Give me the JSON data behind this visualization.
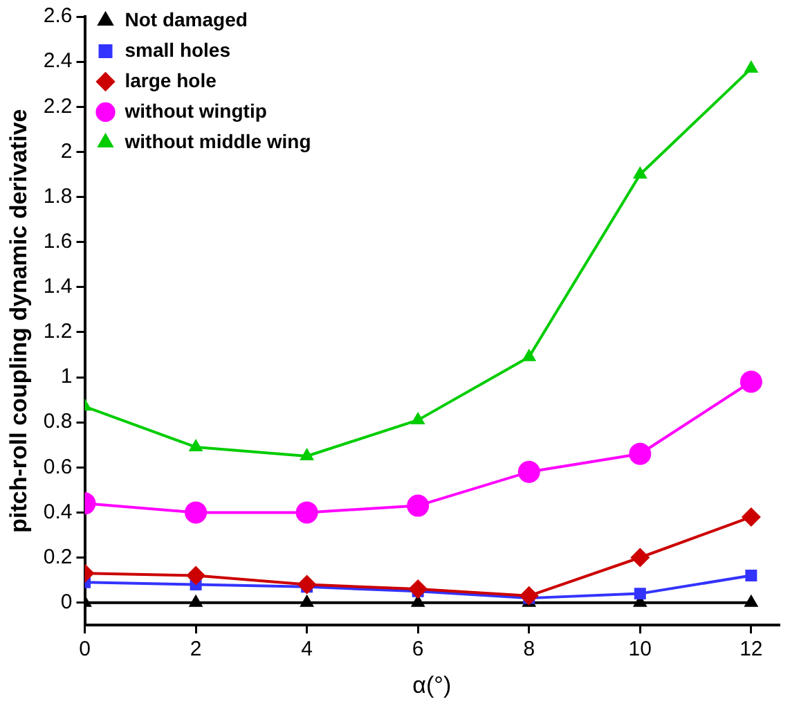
{
  "chart_data": {
    "type": "line",
    "xlabel": "α(°)",
    "ylabel": "pitch-roll coupling dynamic derivative",
    "x": [
      0,
      2,
      4,
      6,
      8,
      10,
      12
    ],
    "xlim": [
      0,
      12.5
    ],
    "xticks": [
      0,
      2,
      4,
      6,
      8,
      10,
      12
    ],
    "ylim": [
      -0.1,
      2.6
    ],
    "yticks": [
      0,
      0.2,
      0.4,
      0.6,
      0.8,
      1,
      1.2,
      1.4,
      1.6,
      1.8,
      2,
      2.2,
      2.4,
      2.6
    ],
    "grid": false,
    "legend": "top left",
    "line_style": "solid",
    "series": [
      {
        "name": "Not damaged",
        "color": "#000000",
        "marker": "triangle",
        "values": [
          0,
          0,
          0,
          0,
          0,
          0,
          0
        ]
      },
      {
        "name": "small holes",
        "color": "#3333ff",
        "marker": "square",
        "values": [
          0.09,
          0.08,
          0.07,
          0.05,
          0.02,
          0.04,
          0.12
        ]
      },
      {
        "name": "large hole",
        "color": "#cc0000",
        "marker": "diamond",
        "values": [
          0.13,
          0.12,
          0.08,
          0.06,
          0.03,
          0.2,
          0.38
        ]
      },
      {
        "name": "without wingtip",
        "color": "#ff00ff",
        "marker": "circle",
        "values": [
          0.44,
          0.4,
          0.4,
          0.43,
          0.58,
          0.66,
          0.98
        ]
      },
      {
        "name": "without middle wing",
        "color": "#00cc00",
        "marker": "triangle",
        "values": [
          0.87,
          0.69,
          0.65,
          0.81,
          1.09,
          1.9,
          2.37
        ]
      }
    ]
  }
}
